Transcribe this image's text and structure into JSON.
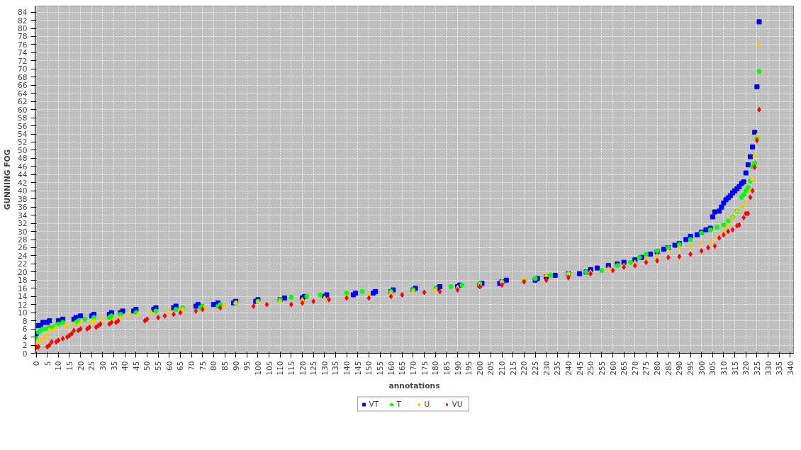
{
  "chart_data": {
    "type": "scatter",
    "xlabel": "annotations",
    "ylabel": "GUNNING FOG",
    "xlim": [
      -0.5,
      341.5
    ],
    "ylim": [
      0,
      85.5
    ],
    "xticks": [
      0,
      5,
      10,
      15,
      20,
      25,
      30,
      35,
      40,
      45,
      50,
      55,
      60,
      65,
      70,
      75,
      80,
      85,
      90,
      95,
      100,
      105,
      110,
      115,
      120,
      125,
      130,
      135,
      140,
      145,
      150,
      155,
      160,
      165,
      170,
      175,
      180,
      185,
      190,
      195,
      200,
      205,
      210,
      215,
      220,
      225,
      230,
      235,
      240,
      245,
      250,
      255,
      260,
      265,
      270,
      275,
      280,
      285,
      290,
      295,
      300,
      305,
      310,
      315,
      320,
      325,
      330,
      335,
      340
    ],
    "yticks": [
      0,
      2,
      4,
      6,
      8,
      10,
      12,
      14,
      16,
      18,
      20,
      22,
      24,
      26,
      28,
      30,
      32,
      34,
      36,
      38,
      40,
      42,
      44,
      46,
      48,
      50,
      52,
      54,
      56,
      58,
      60,
      62,
      64,
      66,
      68,
      70,
      72,
      74,
      76,
      78,
      80,
      82,
      84
    ],
    "grid": true,
    "legend": "bottom",
    "series": [
      {
        "name": "VT",
        "color": "#0000ff",
        "marker": "square",
        "x": [
          0,
          1,
          2,
          3,
          5,
          6,
          10,
          12,
          17,
          18,
          20,
          25,
          26,
          33,
          34,
          38,
          39,
          44,
          45,
          53,
          54,
          62,
          63,
          72,
          73,
          80,
          82,
          89,
          90,
          99,
          100,
          110,
          112,
          120,
          121,
          130,
          131,
          143,
          144,
          152,
          153,
          160,
          161,
          170,
          171,
          181,
          182,
          190,
          191,
          200,
          201,
          209,
          210,
          212,
          225,
          226,
          230,
          234,
          240,
          245,
          248,
          250,
          253,
          258,
          262,
          265,
          270,
          273,
          277,
          280,
          283,
          285,
          288,
          290,
          293,
          295,
          298,
          300,
          302,
          304,
          305,
          306,
          308,
          309,
          310,
          311,
          312,
          313,
          314,
          315,
          316,
          317,
          318,
          319,
          320,
          321,
          322,
          323,
          324,
          325,
          326
        ],
        "values": [
          4.8,
          6.8,
          6.8,
          7.6,
          7.6,
          8,
          8,
          8.4,
          8.4,
          8.8,
          9.2,
          9.2,
          9.6,
          9.6,
          10,
          10,
          10.4,
          10.4,
          10.8,
          10.8,
          11.2,
          11.2,
          11.6,
          11.6,
          12,
          12,
          12.4,
          12.4,
          12.8,
          12.8,
          13.2,
          13.2,
          13.6,
          13.6,
          14,
          14,
          14.4,
          14.4,
          14.8,
          14.8,
          15.2,
          15.2,
          15.6,
          15.6,
          16,
          16,
          16.4,
          16.4,
          16.8,
          16.8,
          17.2,
          17.2,
          17.6,
          18,
          18,
          18.4,
          18.8,
          19.2,
          19.6,
          19.6,
          20,
          20.6,
          21,
          21.6,
          22,
          22.4,
          23,
          23.6,
          24.4,
          25,
          25.6,
          26,
          26.6,
          27,
          28,
          28.8,
          29.2,
          29.8,
          30.4,
          30.8,
          33.6,
          34.8,
          35,
          36,
          37,
          37.8,
          38.3,
          38.8,
          39.5,
          40,
          40.5,
          41,
          41.8,
          42.2,
          44.4,
          46.4,
          48.4,
          50.8,
          54.4,
          65.6,
          81.6
        ]
      },
      {
        "name": "T",
        "color": "#00ff00",
        "marker": "circle",
        "x": [
          0,
          1,
          2,
          3,
          5,
          6,
          8,
          9,
          10,
          12,
          18,
          19,
          22,
          26,
          33,
          34,
          38,
          45,
          54,
          63,
          66,
          74,
          75,
          82,
          83,
          90,
          100,
          110,
          115,
          122,
          128,
          140,
          147,
          160,
          170,
          180,
          187,
          192,
          200,
          210,
          220,
          225,
          232,
          240,
          248,
          255,
          262,
          268,
          272,
          275,
          280,
          285,
          290,
          295,
          300,
          304,
          307,
          310,
          312,
          314,
          316,
          318,
          319,
          320,
          321,
          322,
          323,
          324,
          325,
          326
        ],
        "values": [
          3.6,
          5.2,
          5.6,
          6,
          6,
          6.4,
          6.4,
          6.8,
          7.2,
          7.6,
          7.6,
          8,
          8.4,
          8.8,
          8.8,
          9.2,
          9.6,
          10,
          10.4,
          10.8,
          11.2,
          11.2,
          11.6,
          11.6,
          12,
          12.4,
          12.8,
          13.2,
          13.8,
          14,
          14.4,
          14.8,
          15.2,
          15.2,
          15.6,
          16,
          16.4,
          16.8,
          17.2,
          17.6,
          18,
          18.4,
          19.2,
          19.6,
          20,
          20.4,
          21.6,
          22.4,
          23.6,
          24.4,
          25.2,
          26,
          26.8,
          28,
          29.6,
          30.4,
          31,
          31.6,
          32.5,
          33.5,
          35,
          38.4,
          39,
          40,
          40.8,
          42.4,
          46,
          46.8,
          53,
          69.4
        ]
      },
      {
        "name": "U",
        "color": "#ffc800",
        "marker": "triangle",
        "x": [
          0,
          1,
          3,
          4,
          5,
          6,
          8,
          9,
          13,
          14,
          17,
          20,
          25,
          26,
          30,
          35,
          38,
          42,
          46,
          52,
          60,
          66,
          76,
          85,
          90,
          100,
          110,
          120,
          130,
          140,
          150,
          160,
          170,
          180,
          190,
          200,
          210,
          220,
          230,
          240,
          250,
          258,
          265,
          270,
          275,
          280,
          285,
          290,
          295,
          300,
          304,
          307,
          310,
          312,
          314,
          316,
          318,
          320,
          322,
          323,
          324,
          325,
          326
        ],
        "values": [
          2,
          3.2,
          3.2,
          4,
          4.4,
          5.8,
          5.8,
          6.4,
          6.4,
          6.8,
          7.2,
          7.6,
          7.6,
          8,
          8.4,
          8.4,
          8.8,
          9.2,
          9.6,
          10,
          10.4,
          10.8,
          11.2,
          11.8,
          12.4,
          12.6,
          12.8,
          13.2,
          13.6,
          14,
          14.4,
          14.8,
          15.2,
          15.6,
          16.2,
          16.8,
          17.6,
          18.4,
          19.2,
          19.6,
          20,
          20.8,
          21.6,
          22.4,
          23.2,
          24,
          25.2,
          26,
          26.4,
          27,
          27.6,
          28.4,
          30,
          31.6,
          33.4,
          35,
          36,
          37,
          40,
          42.8,
          48.7,
          53.6,
          75.9
        ]
      },
      {
        "name": "VU",
        "color": "#ff0000",
        "marker": "diamond",
        "x": [
          0,
          1,
          5,
          6,
          7,
          9,
          10,
          12,
          14,
          15,
          16,
          17,
          19,
          20,
          23,
          24,
          27,
          28,
          29,
          33,
          34,
          36,
          37,
          49,
          50,
          55,
          58,
          62,
          65,
          72,
          75,
          83,
          98,
          104,
          115,
          120,
          125,
          132,
          140,
          150,
          160,
          165,
          175,
          182,
          190,
          200,
          210,
          220,
          230,
          240,
          250,
          260,
          265,
          270,
          275,
          280,
          285,
          290,
          295,
          300,
          303,
          306,
          308,
          310,
          312,
          314,
          316,
          317,
          319,
          320,
          321,
          322,
          323,
          324,
          325,
          326
        ],
        "values": [
          1.4,
          1.6,
          1.6,
          2,
          2.8,
          2.8,
          3.2,
          3.6,
          4,
          4.4,
          4.8,
          5.6,
          5.6,
          6,
          6,
          6.4,
          6.4,
          6.8,
          7.2,
          7.2,
          7.6,
          7.6,
          8,
          8,
          8.4,
          8.8,
          9.2,
          9.6,
          10,
          10.4,
          10.8,
          11.2,
          11.6,
          12,
          12,
          12.4,
          12.8,
          13.2,
          13.6,
          13.6,
          14,
          14.4,
          15,
          15.2,
          15.6,
          16.4,
          16.8,
          17.6,
          18,
          18.6,
          19.6,
          20.4,
          21.2,
          21.6,
          22.4,
          22.8,
          23.6,
          23.8,
          24.4,
          25.2,
          26,
          26.4,
          28.4,
          29.2,
          30,
          30.4,
          31.4,
          31.6,
          33.4,
          34.4,
          34.4,
          38.4,
          40,
          45.8,
          52.4,
          60
        ]
      }
    ]
  }
}
